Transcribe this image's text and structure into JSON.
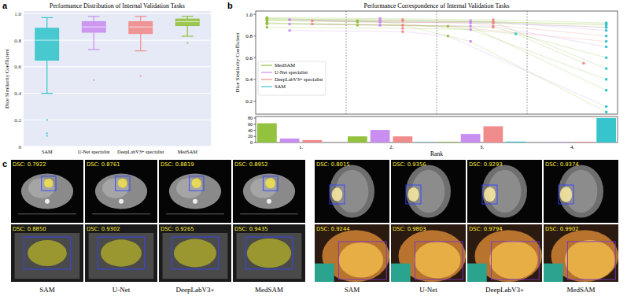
{
  "chart_data": [
    {
      "type": "box",
      "label": "a",
      "title": "Performance Distribution of Internal Validation Tasks",
      "y_label": "Dice Similarity Coefficient",
      "categories": [
        "SAM",
        "U-Net specialist",
        "DeepLabV3+ specialist",
        "MedSAM"
      ],
      "colors": [
        "#36c5cc",
        "#c98ff0",
        "#f08c8c",
        "#93c23f"
      ],
      "boxes": [
        {
          "whisker_low": 0.4,
          "q1": 0.65,
          "median": 0.8,
          "q3": 0.89,
          "whisker_high": 0.97,
          "outliers": [
            0.2,
            0.1,
            0.08
          ]
        },
        {
          "whisker_low": 0.73,
          "q1": 0.86,
          "median": 0.9,
          "q3": 0.94,
          "whisker_high": 0.98,
          "outliers": [
            0.5
          ]
        },
        {
          "whisker_low": 0.72,
          "q1": 0.85,
          "median": 0.9,
          "q3": 0.94,
          "whisker_high": 0.98,
          "outliers": [
            0.53
          ]
        },
        {
          "whisker_low": 0.83,
          "q1": 0.91,
          "median": 0.94,
          "q3": 0.96,
          "whisker_high": 0.98,
          "outliers": [
            0.78
          ]
        }
      ],
      "ylim": [
        0,
        1.02
      ],
      "yticks": [
        0,
        0.2,
        0.4,
        0.6,
        0.8,
        {
          "value": 1,
          "label": "1.0"
        }
      ],
      "grid": true
    },
    {
      "type": "line",
      "label": "b",
      "title": "Performance Correspondence of Internal Validation Tasks",
      "y_label": "Dice Similarity Coefficient",
      "series": [
        {
          "name": "MedSAM",
          "color": "#93c23f",
          "values": [
            0.95,
            0.94,
            0.96,
            0.93,
            0.97,
            0.9,
            0.92,
            0.95,
            0.88,
            0.91,
            0.93,
            0.8,
            0.96,
            0.89,
            0.94,
            0.92
          ]
        },
        {
          "name": "U-Net specialist",
          "color": "#c98ff0",
          "values": [
            0.93,
            0.95,
            0.94,
            0.92,
            0.96,
            0.91,
            0.9,
            0.94,
            0.86,
            0.89,
            0.95,
            0.85,
            0.93,
            0.9,
            0.93,
            0.75
          ]
        },
        {
          "name": "DeepLabV3+ specialist",
          "color": "#f08c8c",
          "values": [
            0.92,
            0.93,
            0.95,
            0.94,
            0.95,
            0.89,
            0.88,
            0.93,
            0.87,
            0.9,
            0.92,
            0.84,
            0.94,
            0.91,
            0.55,
            0.9
          ]
        },
        {
          "name": "SAM",
          "color": "#36c5cc",
          "values": [
            0.88,
            0.85,
            0.9,
            0.8,
            0.92,
            0.7,
            0.6,
            0.5,
            0.4,
            0.3,
            0.88,
            0.15,
            0.91,
            0.75,
            0.82,
            0.1
          ]
        }
      ],
      "ylim": [
        0.08,
        1.03
      ],
      "yticks": [
        0.2,
        0.4,
        0.6,
        0.8,
        {
          "value": 1,
          "label": "1.0"
        }
      ],
      "legend": "center left",
      "marker": "circle",
      "tick_labels": "y",
      "grid": false
    },
    {
      "type": "bar",
      "x_label": "Rank",
      "categories": [
        "1.",
        "2.",
        "3.",
        "4."
      ],
      "series": [
        {
          "name": "MedSAM",
          "color": "#93c23f",
          "values": [
            63,
            20,
            2,
            0
          ]
        },
        {
          "name": "U-Net specialist",
          "color": "#c98ff0",
          "values": [
            13,
            41,
            28,
            1
          ]
        },
        {
          "name": "DeepLabV3+ specialist",
          "color": "#f08c8c",
          "values": [
            8,
            20,
            53,
            2
          ]
        },
        {
          "name": "SAM",
          "color": "#36c5cc",
          "values": [
            0,
            1,
            3,
            80
          ]
        }
      ],
      "ylim": [
        0,
        85
      ],
      "yticks": [
        0,
        20,
        40,
        60,
        80
      ]
    }
  ],
  "panel_c": {
    "label": "c",
    "methods": [
      "SAM",
      "U-Net",
      "DeepLabV3+",
      "MedSAM"
    ],
    "groups": [
      {
        "rows": [
          [
            "DSC: 0.7922",
            "DSC: 0.8761",
            "DSC: 0.8819",
            "DSC: 0.8952"
          ],
          [
            "DSC: 0.8850",
            "DSC: 0.9302",
            "DSC: 0.9265",
            "DSC: 0.9435"
          ]
        ]
      },
      {
        "rows": [
          [
            "DSC: 0.8015",
            "DSC: 0.9356",
            "DSC: 0.9293",
            "DSC: 0.9374"
          ],
          [
            "DSC: 0.9244",
            "DSC: 0.9803",
            "DSC: 0.9794",
            "DSC: 0.9902"
          ]
        ]
      }
    ]
  }
}
